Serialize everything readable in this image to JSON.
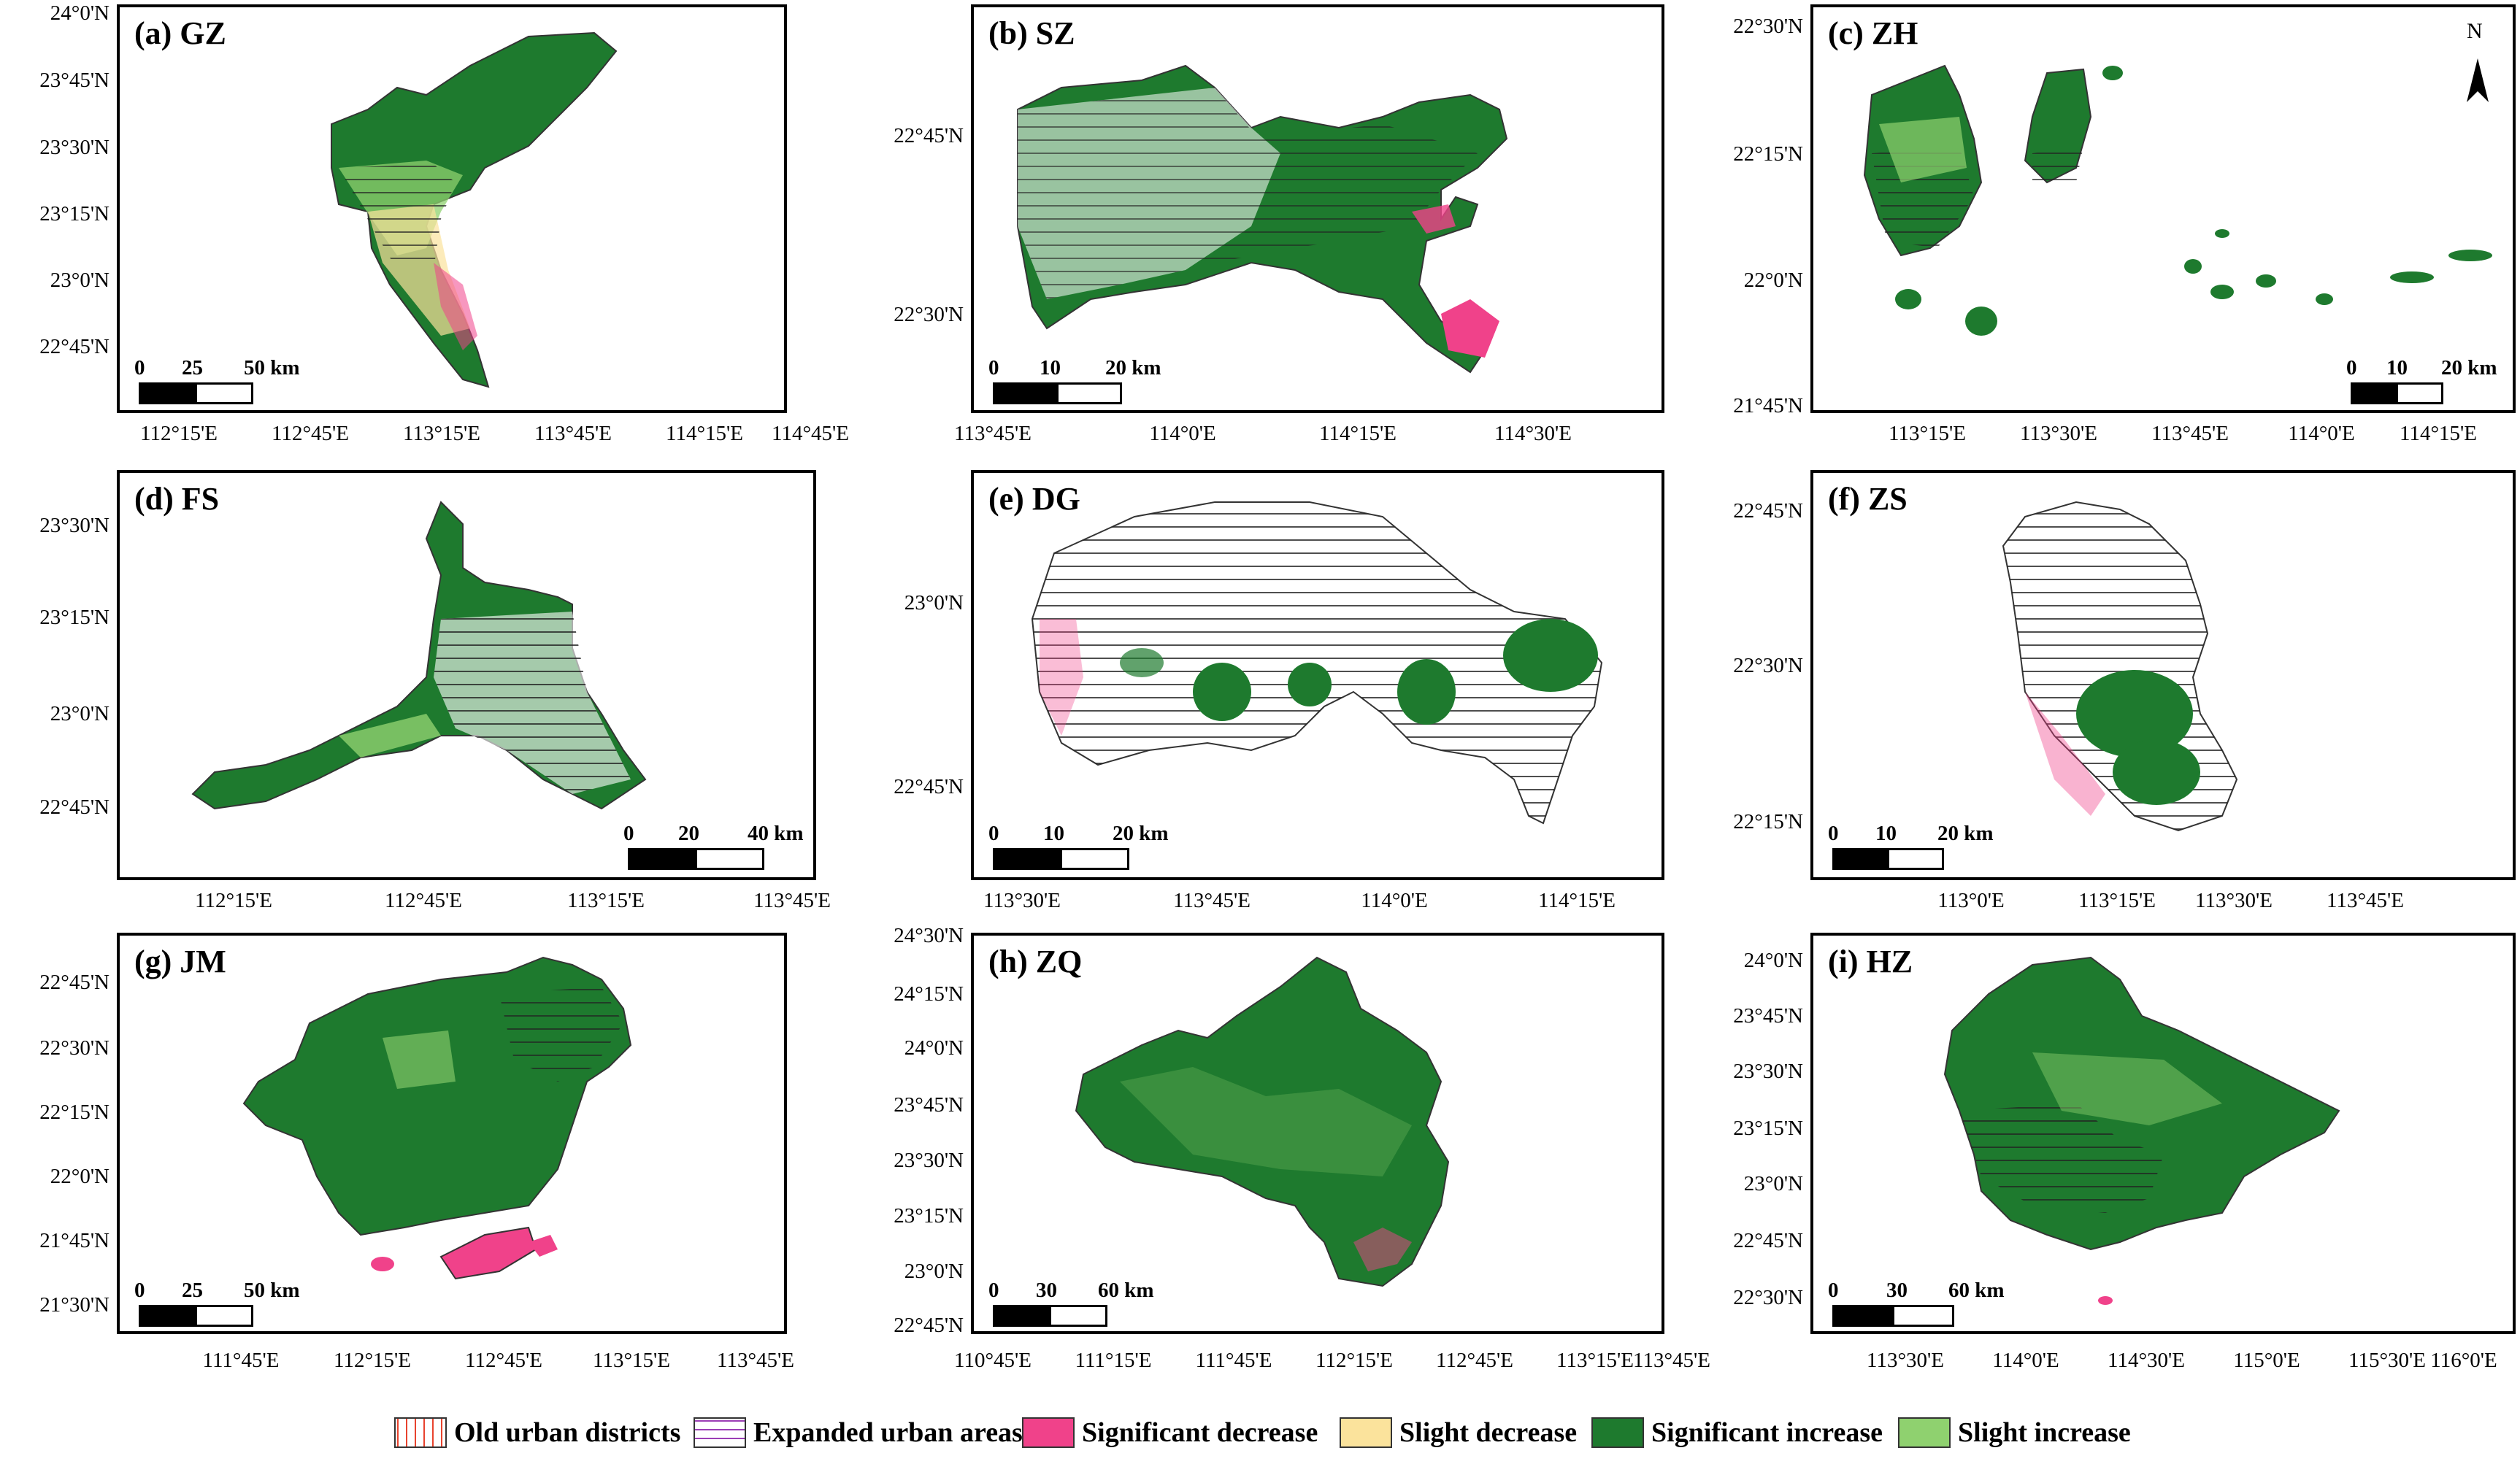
{
  "panels": [
    {
      "id": "a",
      "title": "(a) GZ",
      "lat_labels": [
        "24°0'N",
        "23°45'N",
        "23°30'N",
        "23°15'N",
        "23°0'N",
        "22°45'N"
      ],
      "lon_labels": [
        "112°15'E",
        "112°45'E",
        "113°15'E",
        "113°45'E",
        "114°15'E",
        "114°45'E"
      ],
      "scale": {
        "ticks": [
          "0",
          "25",
          "50 km"
        ]
      }
    },
    {
      "id": "b",
      "title": "(b) SZ",
      "lat_labels": [
        "22°45'N",
        "22°30'N"
      ],
      "lon_labels": [
        "113°45'E",
        "114°0'E",
        "114°15'E",
        "114°30'E"
      ],
      "scale": {
        "ticks": [
          "0",
          "10",
          "20 km"
        ]
      }
    },
    {
      "id": "c",
      "title": "(c) ZH",
      "lat_labels": [
        "22°30'N",
        "22°15'N",
        "22°0'N",
        "21°45'N"
      ],
      "lon_labels": [
        "113°15'E",
        "113°30'E",
        "113°45'E",
        "114°0'E",
        "114°15'E"
      ],
      "scale": {
        "ticks": [
          "0",
          "10",
          "20 km"
        ]
      },
      "north": "N"
    },
    {
      "id": "d",
      "title": "(d) FS",
      "lat_labels": [
        "23°30'N",
        "23°15'N",
        "23°0'N",
        "22°45'N"
      ],
      "lon_labels": [
        "112°15'E",
        "112°45'E",
        "113°15'E",
        "113°45'E"
      ],
      "scale": {
        "ticks": [
          "0",
          "20",
          "40 km"
        ]
      }
    },
    {
      "id": "e",
      "title": "(e) DG",
      "lat_labels": [
        "23°0'N",
        "22°45'N"
      ],
      "lon_labels": [
        "113°30'E",
        "113°45'E",
        "114°0'E",
        "114°15'E"
      ],
      "scale": {
        "ticks": [
          "0",
          "10",
          "20 km"
        ]
      }
    },
    {
      "id": "f",
      "title": "(f) ZS",
      "lat_labels": [
        "22°45'N",
        "22°30'N",
        "22°15'N"
      ],
      "lon_labels": [
        "113°0'E",
        "113°15'E",
        "113°30'E",
        "113°45'E"
      ],
      "scale": {
        "ticks": [
          "0",
          "10",
          "20 km"
        ]
      }
    },
    {
      "id": "g",
      "title": "(g) JM",
      "lat_labels": [
        "22°45'N",
        "22°30'N",
        "22°15'N",
        "22°0'N",
        "21°45'N",
        "21°30'N"
      ],
      "lon_labels": [
        "111°45'E",
        "112°15'E",
        "112°45'E",
        "113°15'E",
        "113°45'E"
      ],
      "scale": {
        "ticks": [
          "0",
          "25",
          "50 km"
        ]
      }
    },
    {
      "id": "h",
      "title": "(h) ZQ",
      "lat_labels": [
        "24°30'N",
        "24°15'N",
        "24°0'N",
        "23°45'N",
        "23°30'N",
        "23°15'N",
        "23°0'N",
        "22°45'N"
      ],
      "lon_labels": [
        "110°45'E",
        "111°15'E",
        "111°45'E",
        "112°15'E",
        "112°45'E",
        "113°15'E",
        "113°45'E"
      ],
      "scale": {
        "ticks": [
          "0",
          "30",
          "60 km"
        ]
      }
    },
    {
      "id": "i",
      "title": "(i) HZ",
      "lat_labels": [
        "24°0'N",
        "23°45'N",
        "23°30'N",
        "23°15'N",
        "23°0'N",
        "22°45'N",
        "22°30'N"
      ],
      "lon_labels": [
        "113°30'E",
        "114°0'E",
        "114°30'E",
        "115°0'E",
        "115°30'E",
        "116°0'E"
      ],
      "scale": {
        "ticks": [
          "0",
          "30",
          "60 km"
        ]
      }
    }
  ],
  "legend": [
    {
      "label": "Old urban districts",
      "pattern": "vertical-hatch",
      "color": "#e8432e"
    },
    {
      "label": "Expanded urban areas",
      "pattern": "horizontal-hatch",
      "color": "#9b3fb5"
    },
    {
      "label": "Significant decrease",
      "pattern": "fill",
      "color": "#f0428a"
    },
    {
      "label": "Slight decrease",
      "pattern": "fill",
      "color": "#fbe39c"
    },
    {
      "label": "Significant increase",
      "pattern": "fill",
      "color": "#1e7a2e"
    },
    {
      "label": "Slight increase",
      "pattern": "fill",
      "color": "#8fd16f"
    }
  ],
  "colors": {
    "significant_increase": "#1e7a2e",
    "slight_increase": "#8fd16f",
    "significant_decrease": "#f0428a",
    "slight_decrease": "#fbe39c",
    "outline": "#333333"
  }
}
